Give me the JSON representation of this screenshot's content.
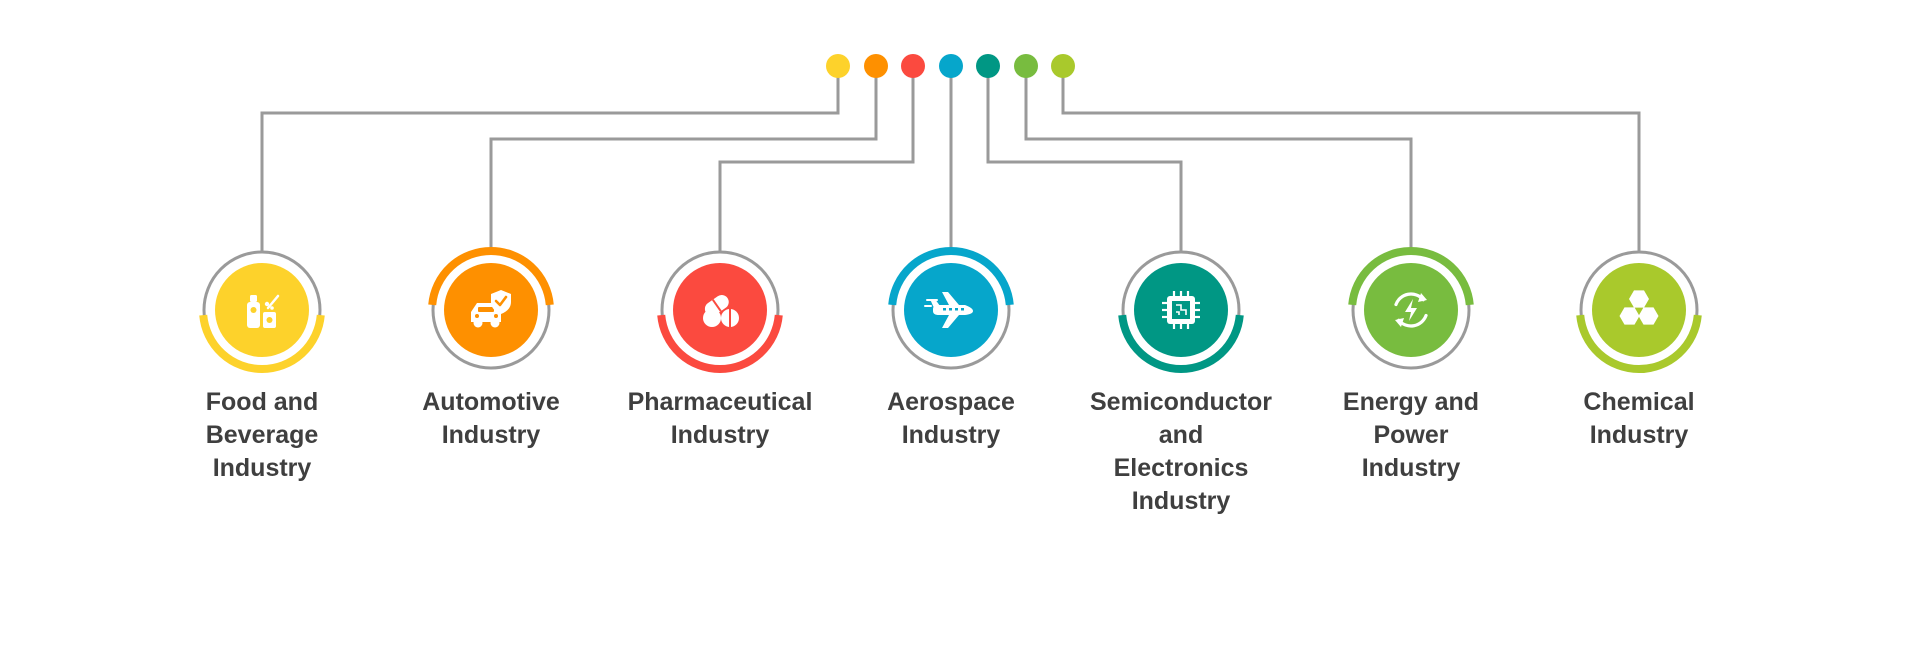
{
  "connector_color": "#9a9a9a",
  "industries": [
    {
      "label": "Food and\nBeverage\nIndustry",
      "color": "#FDD22B",
      "icon": "food-beverage-icon"
    },
    {
      "label": "Automotive\nIndustry",
      "color": "#FE9000",
      "icon": "car-shield-icon"
    },
    {
      "label": "Pharmaceutical\nIndustry",
      "color": "#FB4A3F",
      "icon": "pills-icon"
    },
    {
      "label": "Aerospace\nIndustry",
      "color": "#06A6CB",
      "icon": "airplane-icon"
    },
    {
      "label": "Semiconductor\nand\nElectronics\nIndustry",
      "color": "#009784",
      "icon": "microchip-icon"
    },
    {
      "label": "Energy and\nPower\nIndustry",
      "color": "#78BC3F",
      "icon": "renewable-energy-icon"
    },
    {
      "label": "Chemical\nIndustry",
      "color": "#A9C92C",
      "icon": "hexagons-icon"
    }
  ]
}
